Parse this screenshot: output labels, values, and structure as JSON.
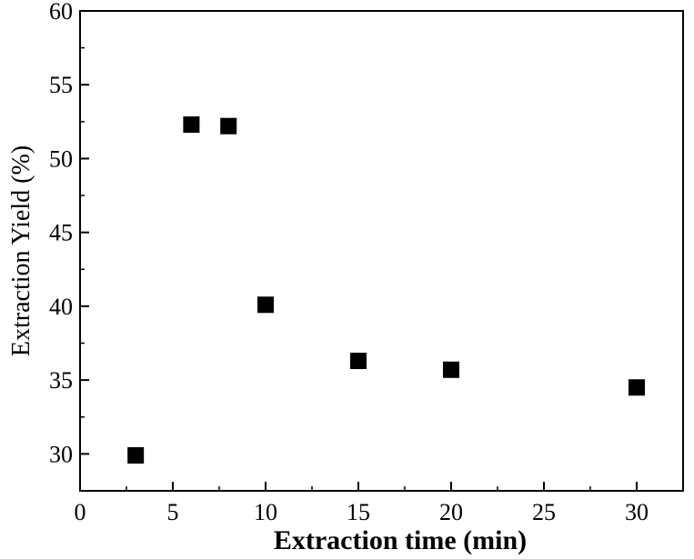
{
  "chart_data": {
    "type": "scatter",
    "title": "",
    "xlabel": "Extraction time (min)",
    "ylabel": "Extraction Yield (%)",
    "xlim": [
      0,
      32.5
    ],
    "ylim": [
      27.5,
      60
    ],
    "xticks": [
      "0",
      "5",
      "10",
      "15",
      "20",
      "25",
      "30"
    ],
    "yticks": [
      "30",
      "35",
      "40",
      "45",
      "50",
      "55",
      "60"
    ],
    "grid": false,
    "marker": "square",
    "marker_color": "#000000",
    "series": [
      {
        "x": [
          3,
          6,
          8,
          10,
          15,
          20,
          30
        ],
        "y": [
          29.9,
          52.3,
          52.2,
          40.1,
          36.3,
          35.7,
          34.5
        ]
      }
    ]
  }
}
